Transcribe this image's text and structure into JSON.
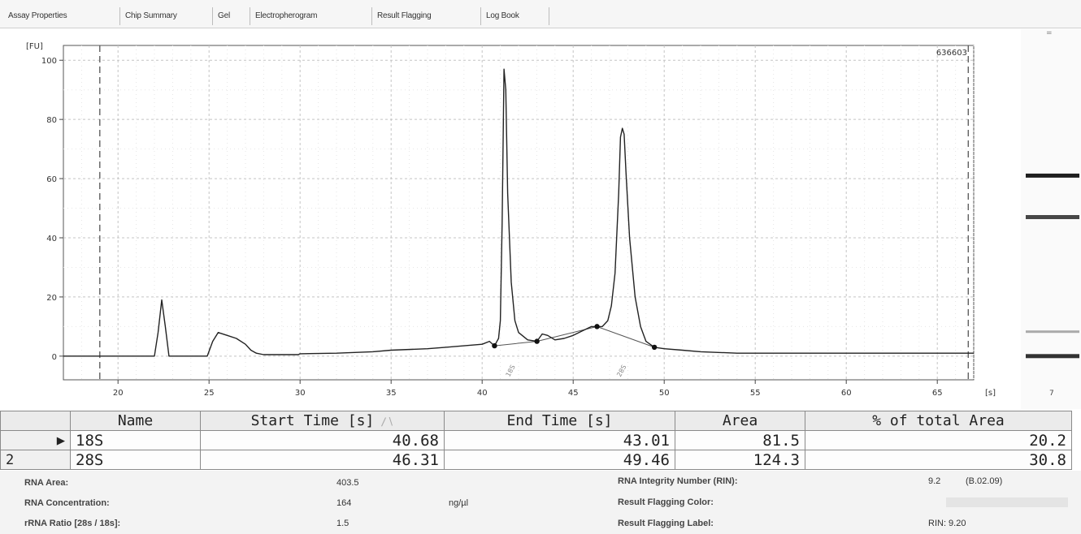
{
  "tabs": [
    {
      "label": "Assay Properties",
      "active": false
    },
    {
      "label": "Chip Summary",
      "active": false
    },
    {
      "label": "Gel",
      "active": false
    },
    {
      "label": "Electropherogram",
      "active": true
    },
    {
      "label": "Result Flagging",
      "active": false
    },
    {
      "label": "Log Book",
      "active": false
    }
  ],
  "chart_data": {
    "type": "line",
    "title": "",
    "xlabel": "[s]",
    "ylabel": "[FU]",
    "sample_id": "636603",
    "xlim": [
      17,
      67
    ],
    "ylim": [
      -8,
      105
    ],
    "x_ticks": [
      20,
      25,
      30,
      35,
      40,
      45,
      50,
      55,
      60,
      65
    ],
    "y_ticks": [
      0,
      20,
      40,
      60,
      80,
      100
    ],
    "grid": true,
    "marker_lines_x": [
      19,
      66.7
    ],
    "peak_labels": [
      {
        "label": "18S",
        "x": 41.5
      },
      {
        "label": "28S",
        "x": 47.6
      }
    ],
    "peak_boundaries": [
      {
        "x": 40.68,
        "y": 3.5
      },
      {
        "x": 43.01,
        "y": 5.0
      },
      {
        "x": 46.31,
        "y": 10.0
      },
      {
        "x": 49.46,
        "y": 3.0
      }
    ],
    "baseline": [
      [
        40.68,
        3.5
      ],
      [
        43.01,
        5.0
      ],
      [
        46.31,
        10.0
      ],
      [
        49.46,
        3.0
      ]
    ],
    "series": [
      {
        "points": [
          [
            17,
            0
          ],
          [
            22.0,
            0
          ],
          [
            22.2,
            8
          ],
          [
            22.4,
            19
          ],
          [
            22.6,
            10
          ],
          [
            22.8,
            0
          ],
          [
            24.9,
            0
          ],
          [
            25.2,
            5
          ],
          [
            25.5,
            8
          ],
          [
            26.0,
            7
          ],
          [
            26.5,
            6
          ],
          [
            27.0,
            4
          ],
          [
            27.3,
            2
          ],
          [
            27.6,
            1
          ],
          [
            28,
            0.5
          ],
          [
            29.9,
            0.5
          ],
          [
            30,
            0.8
          ],
          [
            32,
            1
          ],
          [
            34,
            1.5
          ],
          [
            35,
            2
          ],
          [
            37,
            2.5
          ],
          [
            38,
            3
          ],
          [
            39,
            3.5
          ],
          [
            40,
            4
          ],
          [
            40.4,
            5
          ],
          [
            40.68,
            3.5
          ],
          [
            40.9,
            6
          ],
          [
            41.0,
            12
          ],
          [
            41.1,
            45
          ],
          [
            41.2,
            97
          ],
          [
            41.3,
            90
          ],
          [
            41.4,
            55
          ],
          [
            41.6,
            25
          ],
          [
            41.8,
            12
          ],
          [
            42.0,
            8
          ],
          [
            42.5,
            5.5
          ],
          [
            43.01,
            5
          ],
          [
            43.3,
            7.5
          ],
          [
            43.6,
            7
          ],
          [
            44,
            5.5
          ],
          [
            44.5,
            6
          ],
          [
            45,
            7
          ],
          [
            45.5,
            8.5
          ],
          [
            46.0,
            10
          ],
          [
            46.31,
            10
          ],
          [
            46.6,
            10
          ],
          [
            46.9,
            12
          ],
          [
            47.1,
            17
          ],
          [
            47.3,
            28
          ],
          [
            47.5,
            55
          ],
          [
            47.6,
            74
          ],
          [
            47.7,
            77
          ],
          [
            47.8,
            75
          ],
          [
            47.9,
            62
          ],
          [
            48.1,
            40
          ],
          [
            48.4,
            20
          ],
          [
            48.7,
            10
          ],
          [
            49.0,
            5
          ],
          [
            49.46,
            3
          ],
          [
            50,
            2.5
          ],
          [
            51,
            2
          ],
          [
            52,
            1.5
          ],
          [
            54,
            1
          ],
          [
            58,
            1
          ],
          [
            62,
            1
          ],
          [
            67,
            1
          ]
        ]
      }
    ]
  },
  "gel": {
    "lane_label": "7",
    "bands": [
      {
        "y": 61,
        "strength": 0.95
      },
      {
        "y": 47,
        "strength": 0.75
      },
      {
        "y": 8,
        "strength": 0.25
      },
      {
        "y": 0,
        "strength": 0.85
      }
    ]
  },
  "peak_table": {
    "headers": [
      "Name",
      "Start Time [s]",
      "End Time [s]",
      "Area",
      "% of total Area"
    ],
    "sort_indicator": "∕∖",
    "rows": [
      {
        "row_label": "▶",
        "name": "18S",
        "start": "40.68",
        "end": "43.01",
        "area": "81.5",
        "pct": "20.2",
        "selected": true
      },
      {
        "row_label": "2",
        "name": "28S",
        "start": "46.31",
        "end": "49.46",
        "area": "124.3",
        "pct": "30.8",
        "selected": false
      }
    ]
  },
  "summary": {
    "rna_area_label": "RNA Area:",
    "rna_area_value": "403.5",
    "rna_conc_label": "RNA Concentration:",
    "rna_conc_value": "164",
    "rna_conc_unit": "ng/µl",
    "rrna_ratio_label": "rRNA Ratio [28s / 18s]:",
    "rrna_ratio_value": "1.5",
    "rin_label": "RNA Integrity Number (RIN):",
    "rin_value": "9.2",
    "rin_version": "(B.02.09)",
    "flag_color_label": "Result Flagging Color:",
    "flag_label_label": "Result Flagging Label:",
    "flag_label_value": "RIN: 9.20"
  }
}
